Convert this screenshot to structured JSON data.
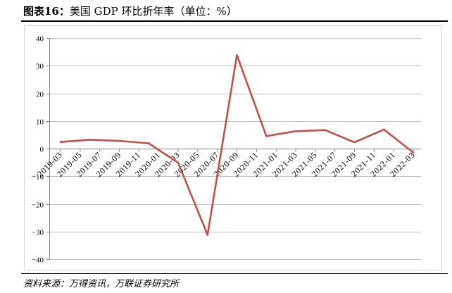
{
  "figure": {
    "label": "图表16：",
    "source": "资料来源：万得资讯，万联证券研究所"
  },
  "chart_data": {
    "type": "line",
    "title": "美国 GDP 环比折年率（单位：%）",
    "x": [
      "2019-03",
      "2019-06",
      "2019-09",
      "2019-12",
      "2020-03",
      "2020-06",
      "2020-09",
      "2020-12",
      "2021-03",
      "2021-06",
      "2021-09",
      "2021-12",
      "2022-03"
    ],
    "series": [
      {
        "values": [
          2.4,
          3.2,
          2.8,
          1.9,
          -5.1,
          -31.2,
          33.8,
          4.5,
          6.3,
          6.7,
          2.3,
          6.9,
          -1.4
        ],
        "color": "#C0504D"
      }
    ],
    "x_tick_labels": [
      "2019-03",
      "2019-05",
      "2019-07",
      "2019-09",
      "2019-11",
      "2020-01",
      "2020-03",
      "2020-05",
      "2020-07",
      "2020-09",
      "2020-11",
      "2021-01",
      "2021-03",
      "2021-05",
      "2021-07",
      "2021-09",
      "2021-11",
      "2022-01",
      "2022-03"
    ],
    "xlim": [
      "2019-03",
      "2022-03"
    ],
    "y_ticks": [
      40,
      30,
      20,
      10,
      0,
      -10,
      -20,
      -30,
      -40
    ],
    "y_tick_labels": [
      "40",
      "30",
      "20",
      "10",
      "0",
      "−10",
      "−20",
      "−30",
      "−40"
    ],
    "ylim": [
      -40,
      40
    ],
    "grid": true
  }
}
